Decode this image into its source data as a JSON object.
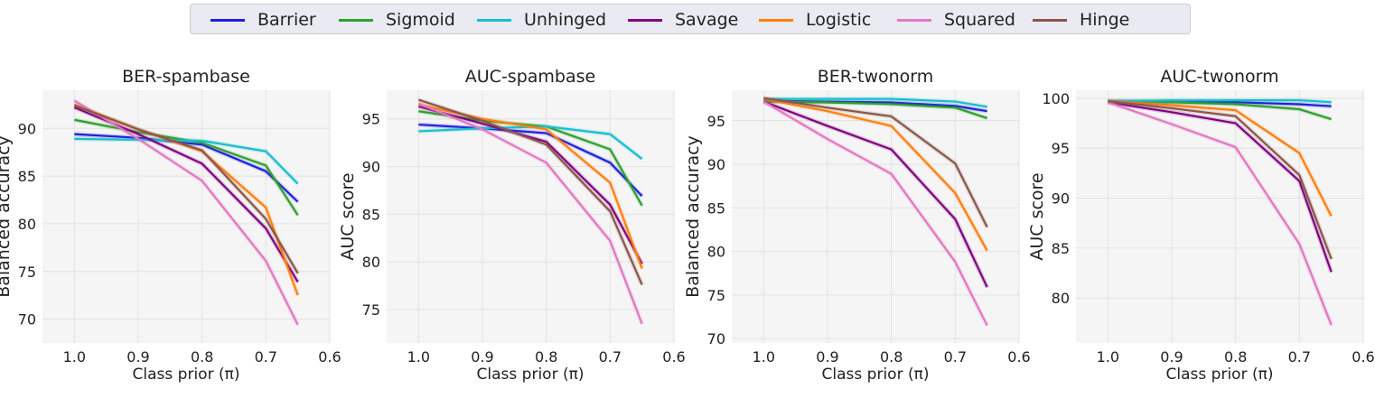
{
  "legend": [
    {
      "name": "Barrier",
      "color": "#1f1fe0"
    },
    {
      "name": "Sigmoid",
      "color": "#2ca02c"
    },
    {
      "name": "Unhinged",
      "color": "#17becf"
    },
    {
      "name": "Savage",
      "color": "#800080"
    },
    {
      "name": "Logistic",
      "color": "#ff7f0e"
    },
    {
      "name": "Squared",
      "color": "#e377c2"
    },
    {
      "name": "Hinge",
      "color": "#8c564b"
    }
  ],
  "chart_data": [
    {
      "type": "line",
      "title": "BER-spambase",
      "xlabel": "Class prior (π)",
      "ylabel": "Balanced accuracy",
      "x": [
        1.0,
        0.9,
        0.8,
        0.7,
        0.65
      ],
      "xlim": [
        1.05,
        0.6
      ],
      "ylim": [
        67.5,
        94.0
      ],
      "xticks": [
        1.0,
        0.9,
        0.8,
        0.7,
        0.6
      ],
      "xtick_labels": [
        "1.0",
        "0.9",
        "0.8",
        "0.7",
        "0.6"
      ],
      "yticks": [
        70,
        75,
        80,
        85,
        90
      ],
      "ytick_labels": [
        "70",
        "75",
        "80",
        "85",
        "90"
      ],
      "series": [
        {
          "name": "Barrier",
          "values": [
            89.4,
            89.0,
            88.3,
            85.5,
            82.3
          ]
        },
        {
          "name": "Sigmoid",
          "values": [
            90.9,
            89.6,
            88.5,
            86.1,
            80.9
          ]
        },
        {
          "name": "Unhinged",
          "values": [
            88.9,
            88.8,
            88.7,
            87.6,
            84.2
          ]
        },
        {
          "name": "Savage",
          "values": [
            92.2,
            89.4,
            86.3,
            79.5,
            73.9
          ]
        },
        {
          "name": "Logistic",
          "values": [
            92.5,
            89.9,
            87.6,
            81.7,
            72.5
          ]
        },
        {
          "name": "Squared",
          "values": [
            92.9,
            88.9,
            84.5,
            76.1,
            69.4
          ]
        },
        {
          "name": "Hinge",
          "values": [
            92.4,
            89.9,
            87.7,
            80.5,
            74.8
          ]
        }
      ]
    },
    {
      "type": "line",
      "title": "AUC-spambase",
      "xlabel": "Class prior (π)",
      "ylabel": "AUC score",
      "x": [
        1.0,
        0.9,
        0.8,
        0.7,
        0.65
      ],
      "xlim": [
        1.05,
        0.6
      ],
      "ylim": [
        71.5,
        98.0
      ],
      "xticks": [
        1.0,
        0.9,
        0.8,
        0.7,
        0.6
      ],
      "xtick_labels": [
        "1.0",
        "0.9",
        "0.8",
        "0.7",
        "0.6"
      ],
      "yticks": [
        75,
        80,
        85,
        90,
        95
      ],
      "ytick_labels": [
        "75",
        "80",
        "85",
        "90",
        "95"
      ],
      "series": [
        {
          "name": "Barrier",
          "values": [
            94.4,
            94.0,
            93.5,
            90.4,
            86.9
          ]
        },
        {
          "name": "Sigmoid",
          "values": [
            95.8,
            94.8,
            94.2,
            91.8,
            85.9
          ]
        },
        {
          "name": "Unhinged",
          "values": [
            93.7,
            94.0,
            94.2,
            93.4,
            90.8
          ]
        },
        {
          "name": "Savage",
          "values": [
            96.3,
            94.5,
            92.6,
            86.0,
            79.8
          ]
        },
        {
          "name": "Logistic",
          "values": [
            96.5,
            95.0,
            93.9,
            88.3,
            79.3
          ]
        },
        {
          "name": "Squared",
          "values": [
            96.6,
            93.9,
            90.4,
            82.2,
            73.5
          ]
        },
        {
          "name": "Hinge",
          "values": [
            97.0,
            94.8,
            92.3,
            85.3,
            77.6
          ]
        }
      ]
    },
    {
      "type": "line",
      "title": "BER-twonorm",
      "xlabel": "Class prior (π)",
      "ylabel": "Balanced accuracy",
      "x": [
        1.0,
        0.9,
        0.8,
        0.7,
        0.65
      ],
      "xlim": [
        1.05,
        0.6
      ],
      "ylim": [
        69.5,
        98.5
      ],
      "xticks": [
        1.0,
        0.9,
        0.8,
        0.7,
        0.6
      ],
      "xtick_labels": [
        "1.0",
        "0.9",
        "0.8",
        "0.7",
        "0.6"
      ],
      "yticks": [
        70,
        75,
        80,
        85,
        90,
        95
      ],
      "ytick_labels": [
        "70",
        "75",
        "80",
        "85",
        "90",
        "95"
      ],
      "series": [
        {
          "name": "Barrier",
          "values": [
            97.3,
            97.2,
            97.1,
            96.7,
            96.1
          ]
        },
        {
          "name": "Sigmoid",
          "values": [
            97.2,
            97.1,
            96.9,
            96.5,
            95.3
          ]
        },
        {
          "name": "Unhinged",
          "values": [
            97.5,
            97.5,
            97.5,
            97.2,
            96.6
          ]
        },
        {
          "name": "Savage",
          "values": [
            97.2,
            94.4,
            91.7,
            83.7,
            75.9
          ]
        },
        {
          "name": "Logistic",
          "values": [
            97.5,
            96.1,
            94.4,
            86.7,
            80.1
          ]
        },
        {
          "name": "Squared",
          "values": [
            97.2,
            92.9,
            88.9,
            78.8,
            71.5
          ]
        },
        {
          "name": "Hinge",
          "values": [
            97.6,
            96.5,
            95.5,
            90.1,
            82.8
          ]
        }
      ]
    },
    {
      "type": "line",
      "title": "AUC-twonorm",
      "xlabel": "Class prior (π)",
      "ylabel": "AUC score",
      "x": [
        1.0,
        0.9,
        0.8,
        0.7,
        0.65
      ],
      "xlim": [
        1.05,
        0.6
      ],
      "ylim": [
        75.5,
        100.8
      ],
      "xticks": [
        1.0,
        0.9,
        0.8,
        0.7,
        0.6
      ],
      "xtick_labels": [
        "1.0",
        "0.9",
        "0.8",
        "0.7",
        "0.6"
      ],
      "yticks": [
        80,
        85,
        90,
        95,
        100
      ],
      "ytick_labels": [
        "80",
        "85",
        "90",
        "95",
        "100"
      ],
      "series": [
        {
          "name": "Barrier",
          "values": [
            99.7,
            99.6,
            99.6,
            99.4,
            99.2
          ]
        },
        {
          "name": "Sigmoid",
          "values": [
            99.7,
            99.6,
            99.4,
            98.9,
            97.9
          ]
        },
        {
          "name": "Unhinged",
          "values": [
            99.7,
            99.8,
            99.8,
            99.8,
            99.6
          ]
        },
        {
          "name": "Savage",
          "values": [
            99.6,
            98.6,
            97.5,
            91.7,
            82.6
          ]
        },
        {
          "name": "Logistic",
          "values": [
            99.7,
            99.3,
            98.8,
            94.5,
            88.2
          ]
        },
        {
          "name": "Squared",
          "values": [
            99.6,
            97.4,
            95.1,
            85.4,
            77.3
          ]
        },
        {
          "name": "Hinge",
          "values": [
            99.7,
            99.0,
            98.2,
            92.3,
            83.9
          ]
        }
      ]
    }
  ]
}
